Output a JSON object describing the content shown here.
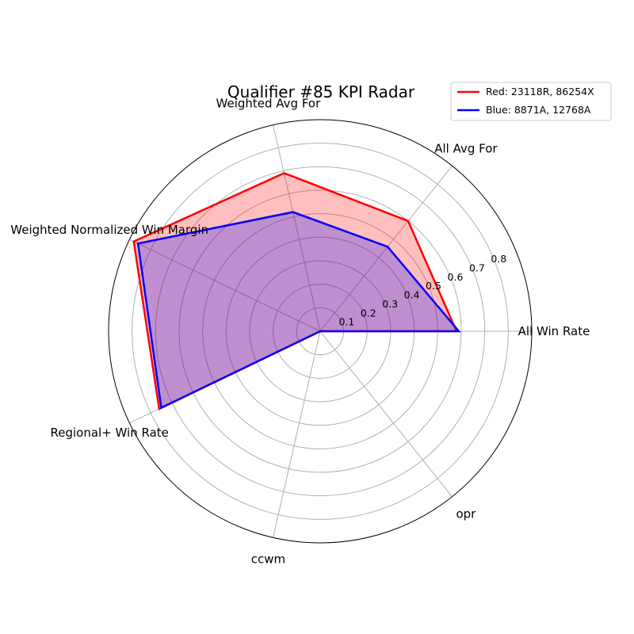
{
  "chart_data": {
    "type": "radar",
    "title": "Qualifier #85 KPI Radar",
    "categories": [
      "All Win Rate",
      "All Avg For",
      "Weighted Avg For",
      "Weighted Normalized Win Margin",
      "Regional+ Win Rate",
      "ccwm",
      "opr"
    ],
    "r_ticks": [
      "0.1",
      "0.2",
      "0.3",
      "0.4",
      "0.5",
      "0.6",
      "0.7",
      "0.8"
    ],
    "rlim": [
      0,
      0.9
    ],
    "grid": true,
    "legend_position": "top-right",
    "series": [
      {
        "name": "Red: 23118R, 86254X",
        "color": "#ff0000",
        "fill": "#ff0000",
        "values": [
          0.58,
          0.6,
          0.69,
          0.88,
          0.76,
          0.0,
          0.0
        ]
      },
      {
        "name": "Blue: 8871A, 12768A",
        "color": "#0000ff",
        "fill": "#0000ff",
        "values": [
          0.59,
          0.46,
          0.52,
          0.86,
          0.75,
          0.0,
          0.0
        ]
      }
    ]
  }
}
